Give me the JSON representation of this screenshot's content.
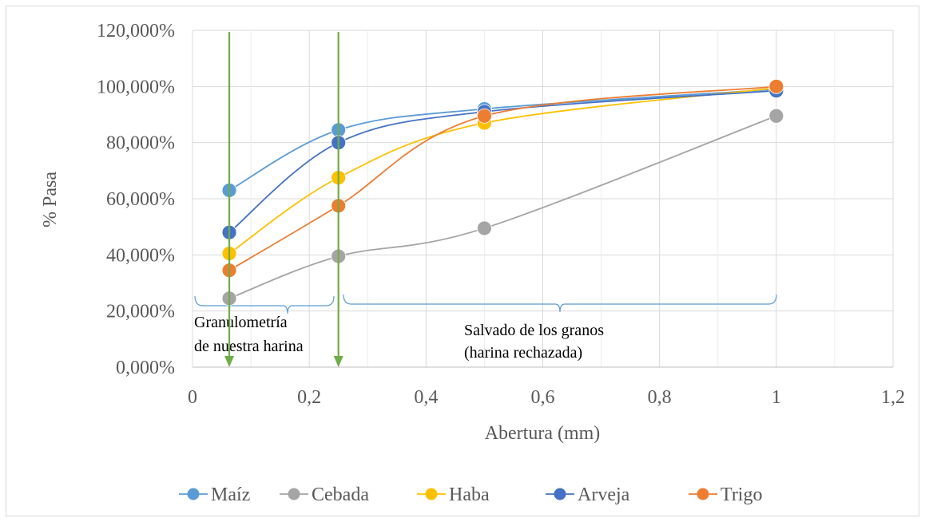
{
  "chart_data": {
    "type": "line",
    "xlabel": "Abertura (mm)",
    "ylabel": "% Pasa",
    "xlim": [
      0,
      1.2
    ],
    "ylim": [
      0,
      1.2
    ],
    "xticks": [
      0,
      0.2,
      0.4,
      0.6,
      0.8,
      1.0,
      1.2
    ],
    "xtick_labels": [
      "0",
      "0,2",
      "0,4",
      "0,6",
      "0,8",
      "1",
      "1,2"
    ],
    "yticks": [
      0,
      0.2,
      0.4,
      0.6,
      0.8,
      1.0,
      1.2
    ],
    "ytick_labels": [
      "0,000%",
      "20,000%",
      "40,000%",
      "60,000%",
      "80,000%",
      "100,000%",
      "120,000%"
    ],
    "grid": true,
    "smooth": true,
    "legend_position": "bottom",
    "x": [
      0.063,
      0.25,
      0.5,
      1.0
    ],
    "series": [
      {
        "name": "Maíz",
        "color": "#5B9BD5",
        "values": [
          0.63,
          0.845,
          0.92,
          0.99
        ]
      },
      {
        "name": "Cebada",
        "color": "#A5A5A5",
        "values": [
          0.245,
          0.395,
          0.495,
          0.895
        ]
      },
      {
        "name": "Haba",
        "color": "#FFC000",
        "values": [
          0.405,
          0.675,
          0.87,
          0.995
        ]
      },
      {
        "name": "Arveja",
        "color": "#4472C4",
        "values": [
          0.48,
          0.8,
          0.91,
          0.985
        ]
      },
      {
        "name": "Trigo",
        "color": "#ED7D31",
        "values": [
          0.345,
          0.575,
          0.895,
          1.0
        ]
      }
    ],
    "annotations": [
      {
        "text_lines": [
          "Granulometría",
          "de nuestra harina"
        ]
      },
      {
        "text_lines": [
          "Salvado de los granos",
          "(harina rechazada)"
        ]
      }
    ],
    "marker_lines": {
      "x": [
        0.063,
        0.25
      ],
      "color": "#70AD47"
    },
    "brace_color": "#5B9BD5"
  }
}
